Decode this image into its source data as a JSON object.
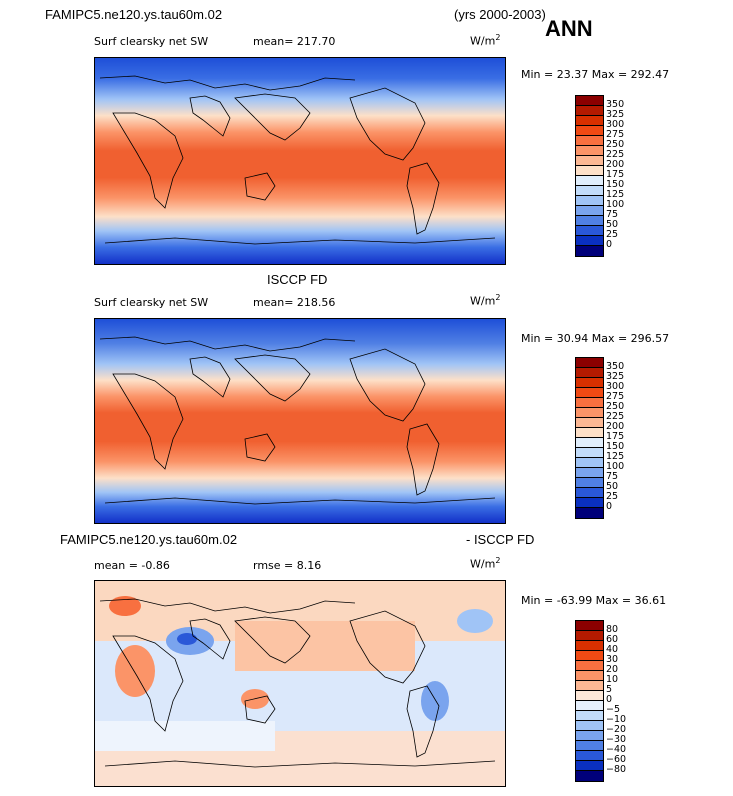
{
  "header": {
    "case_name": "FAMIPC5.ne120.ys.tau60m.02",
    "years": "(yrs 2000-2003)",
    "season": "ANN"
  },
  "panels": [
    {
      "title": "",
      "subtitle": "Surf clearsky net SW",
      "stat_label": "mean= 217.70",
      "units": "W/m",
      "units_sup": "2",
      "minmax": "Min =  23.37  Max = 292.47",
      "colorbar": {
        "labels": [
          "350",
          "325",
          "300",
          "275",
          "250",
          "225",
          "200",
          "175",
          "150",
          "125",
          "100",
          "75",
          "50",
          "25",
          "0"
        ],
        "colors": [
          "#8b0000",
          "#b41a00",
          "#d83000",
          "#f04a14",
          "#f87040",
          "#fb9468",
          "#fcb894",
          "#fde0c8",
          "#e0eefc",
          "#c2dcfa",
          "#a0c4f6",
          "#7aa4ee",
          "#5080e4",
          "#2a58d8",
          "#0a30c0",
          "#00007a"
        ]
      }
    },
    {
      "title": "ISCCP FD",
      "subtitle": "Surf clearsky net SW",
      "stat_label": "mean= 218.56",
      "units": "W/m",
      "units_sup": "2",
      "minmax": "Min =  30.94  Max = 296.57",
      "colorbar": {
        "labels": [
          "350",
          "325",
          "300",
          "275",
          "250",
          "225",
          "200",
          "175",
          "150",
          "125",
          "100",
          "75",
          "50",
          "25",
          "0"
        ],
        "colors": [
          "#8b0000",
          "#b41a00",
          "#d83000",
          "#f04a14",
          "#f87040",
          "#fb9468",
          "#fcb894",
          "#fde0c8",
          "#e0eefc",
          "#c2dcfa",
          "#a0c4f6",
          "#7aa4ee",
          "#5080e4",
          "#2a58d8",
          "#0a30c0",
          "#00007a"
        ]
      }
    },
    {
      "title_left": "FAMIPC5.ne120.ys.tau60m.02",
      "title_right": "- ISCCP FD",
      "stat_label": "mean =  -0.86",
      "rmse_label": "rmse =    8.16",
      "units": "W/m",
      "units_sup": "2",
      "minmax": "Min = -63.99  Max =  36.61",
      "colorbar": {
        "labels": [
          "80",
          "60",
          "40",
          "30",
          "20",
          "10",
          "5",
          "0",
          "−5",
          "−10",
          "−20",
          "−30",
          "−40",
          "−60",
          "−80"
        ],
        "colors": [
          "#8b0000",
          "#b41a00",
          "#d83000",
          "#f04a14",
          "#f87040",
          "#fb9468",
          "#fcb894",
          "#fde8d8",
          "#e6f0fc",
          "#c2dcfa",
          "#a0c4f6",
          "#7aa4ee",
          "#5080e4",
          "#2a58d8",
          "#0a30c0",
          "#00007a"
        ]
      }
    }
  ]
}
